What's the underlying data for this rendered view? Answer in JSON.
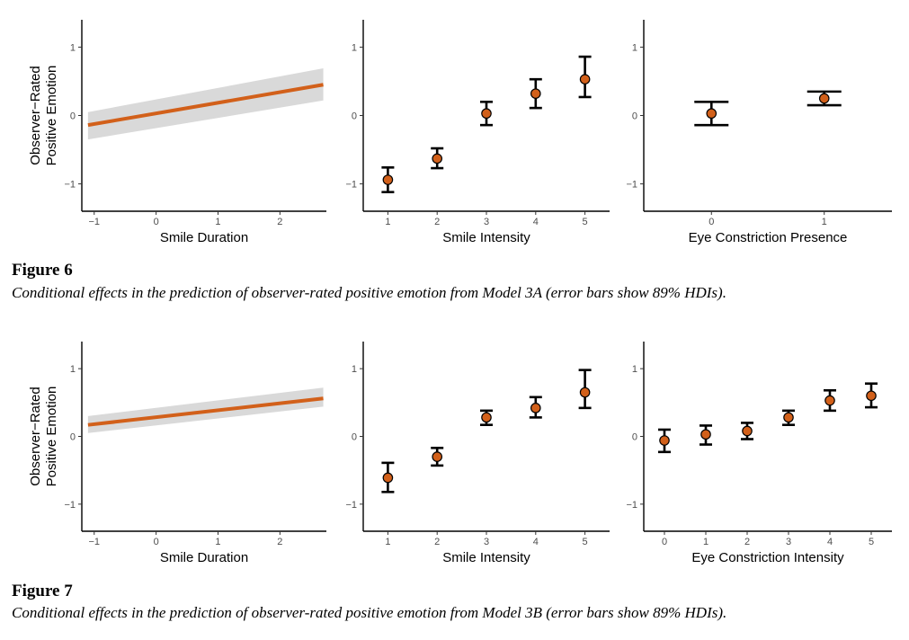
{
  "figures": [
    {
      "label": "Figure 6",
      "caption": "Conditional effects in the prediction of observer-rated positive emotion from Model 3A (error bars show 89% HDIs)."
    },
    {
      "label": "Figure 7",
      "caption": "Conditional effects in the prediction of observer-rated positive emotion from Model 3B (error bars show 89% HDIs)."
    }
  ],
  "colors": {
    "line": "#D2601A",
    "ribbon": "#D9D9D9",
    "point_fill": "#D2601A",
    "axis": "#000000",
    "tick_label": "#4D4D4D"
  },
  "chart_data": [
    {
      "type": "line",
      "figure": "Figure 6",
      "xlabel": "Smile Duration",
      "ylabel": [
        "Observer−Rated",
        "Positive Emotion"
      ],
      "xlim": [
        -1.2,
        2.75
      ],
      "ylim": [
        -1.4,
        1.4
      ],
      "xticks": [
        -1,
        0,
        1,
        2
      ],
      "xticklabels": [
        "−1",
        "0",
        "1",
        "2"
      ],
      "yticks": [
        -1,
        0,
        1
      ],
      "yticklabels": [
        "−1",
        "0",
        "1"
      ],
      "x": [
        -1.1,
        2.7
      ],
      "y": [
        -0.14,
        0.45
      ],
      "lower": [
        -0.35,
        0.22
      ],
      "upper": [
        0.05,
        0.69
      ]
    },
    {
      "type": "scatter",
      "figure": "Figure 6",
      "xlabel": "Smile Intensity",
      "ylabel": "",
      "xlim": [
        0.5,
        5.5
      ],
      "ylim": [
        -1.4,
        1.4
      ],
      "xticks": [
        1,
        2,
        3,
        4,
        5
      ],
      "xticklabels": [
        "1",
        "2",
        "3",
        "4",
        "5"
      ],
      "yticks": [
        -1,
        0,
        1
      ],
      "yticklabels": [
        "−1",
        "0",
        "1"
      ],
      "x": [
        1,
        2,
        3,
        4,
        5
      ],
      "y": [
        -0.94,
        -0.63,
        0.03,
        0.32,
        0.53
      ],
      "lower": [
        -1.12,
        -0.77,
        -0.14,
        0.11,
        0.27
      ],
      "upper": [
        -0.76,
        -0.48,
        0.2,
        0.53,
        0.86
      ]
    },
    {
      "type": "scatter",
      "figure": "Figure 6",
      "xlabel": "Eye Constriction Presence",
      "ylabel": "",
      "xlim": [
        -0.6,
        1.6
      ],
      "ylim": [
        -1.4,
        1.4
      ],
      "xticks": [
        0,
        1
      ],
      "xticklabels": [
        "0",
        "1"
      ],
      "yticks": [
        -1,
        0,
        1
      ],
      "yticklabels": [
        "−1",
        "0",
        "1"
      ],
      "x": [
        0,
        1
      ],
      "y": [
        0.03,
        0.25
      ],
      "lower": [
        -0.14,
        0.15
      ],
      "upper": [
        0.2,
        0.35
      ],
      "wide_caps": true
    },
    {
      "type": "line",
      "figure": "Figure 7",
      "xlabel": "Smile Duration",
      "ylabel": [
        "Observer−Rated",
        "Positive Emotion"
      ],
      "xlim": [
        -1.2,
        2.75
      ],
      "ylim": [
        -1.4,
        1.4
      ],
      "xticks": [
        -1,
        0,
        1,
        2
      ],
      "xticklabels": [
        "−1",
        "0",
        "1",
        "2"
      ],
      "yticks": [
        -1,
        0,
        1
      ],
      "yticklabels": [
        "−1",
        "0",
        "1"
      ],
      "x": [
        -1.1,
        2.7
      ],
      "y": [
        0.17,
        0.56
      ],
      "lower": [
        0.05,
        0.44
      ],
      "upper": [
        0.3,
        0.72
      ]
    },
    {
      "type": "scatter",
      "figure": "Figure 7",
      "xlabel": "Smile Intensity",
      "ylabel": "",
      "xlim": [
        0.5,
        5.5
      ],
      "ylim": [
        -1.4,
        1.4
      ],
      "xticks": [
        1,
        2,
        3,
        4,
        5
      ],
      "xticklabels": [
        "1",
        "2",
        "3",
        "4",
        "5"
      ],
      "yticks": [
        -1,
        0,
        1
      ],
      "yticklabels": [
        "−1",
        "0",
        "1"
      ],
      "x": [
        1,
        2,
        3,
        4,
        5
      ],
      "y": [
        -0.61,
        -0.3,
        0.28,
        0.42,
        0.65
      ],
      "lower": [
        -0.82,
        -0.43,
        0.17,
        0.28,
        0.42
      ],
      "upper": [
        -0.39,
        -0.17,
        0.38,
        0.58,
        0.98
      ]
    },
    {
      "type": "scatter",
      "figure": "Figure 7",
      "xlabel": "Eye Constriction Intensity",
      "ylabel": "",
      "xlim": [
        -0.5,
        5.5
      ],
      "ylim": [
        -1.4,
        1.4
      ],
      "xticks": [
        0,
        1,
        2,
        3,
        4,
        5
      ],
      "xticklabels": [
        "0",
        "1",
        "2",
        "3",
        "4",
        "5"
      ],
      "yticks": [
        -1,
        0,
        1
      ],
      "yticklabels": [
        "−1",
        "0",
        "1"
      ],
      "x": [
        0,
        1,
        2,
        3,
        4,
        5
      ],
      "y": [
        -0.06,
        0.03,
        0.08,
        0.28,
        0.53,
        0.6
      ],
      "lower": [
        -0.23,
        -0.12,
        -0.04,
        0.17,
        0.38,
        0.43
      ],
      "upper": [
        0.1,
        0.16,
        0.2,
        0.38,
        0.68,
        0.78
      ]
    }
  ]
}
